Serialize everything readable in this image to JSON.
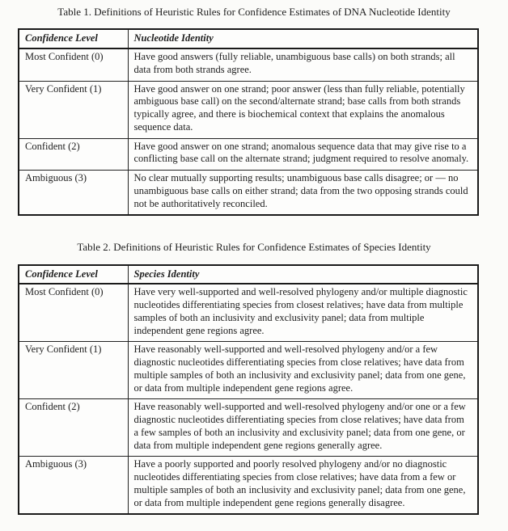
{
  "page": {
    "background_color": "#fbfbf9",
    "text_color": "#1e1e1e"
  },
  "tables": [
    {
      "title": "Table 1. Definitions of Heuristic Rules for Confidence Estimates of DNA Nucleotide Identity",
      "headers": [
        "Confidence Level",
        "Nucleotide Identity"
      ],
      "rows": [
        {
          "level": "Most Confident (0)",
          "definition": "Have good answers (fully reliable, unambiguous base calls) on both strands; all data from both strands agree."
        },
        {
          "level": "Very Confident (1)",
          "definition": "Have good answer on one strand; poor answer (less than fully reliable, potentially ambiguous base call) on the second/alternate strand; base calls from both strands typically agree, and there is biochemical context that explains the anomalous sequence data."
        },
        {
          "level": "Confident (2)",
          "definition": "Have good answer on one strand; anomalous sequence data that may give rise to a conflicting base call on the alternate strand; judgment required to resolve anomaly."
        },
        {
          "level": "Ambiguous (3)",
          "definition": "No clear mutually supporting results; unambiguous base calls disagree; or — no unambiguous base calls on either strand; data from the two opposing strands could not be authoritatively reconciled."
        }
      ]
    },
    {
      "title": "Table 2. Definitions of Heuristic Rules for Confidence Estimates of Species Identity",
      "headers": [
        "Confidence Level",
        "Species Identity"
      ],
      "rows": [
        {
          "level": "Most Confident (0)",
          "definition": "Have very well-supported and well-resolved phylogeny and/or multiple diagnostic nucleotides differentiating species from closest relatives; have data from multiple samples of both an inclusivity and exclusivity panel; data from multiple independent gene regions agree."
        },
        {
          "level": "Very Confident (1)",
          "definition": "Have reasonably well-supported and well-resolved phylogeny and/or a few diagnostic nucleotides differentiating species from close relatives; have data from multiple samples of both an inclusivity and exclusivity panel; data from one gene, or data from multiple independent gene regions agree."
        },
        {
          "level": "Confident (2)",
          "definition": "Have reasonably well-supported and well-resolved phylogeny and/or one or a few diagnostic nucleotides differentiating species from close relatives; have data from a few samples of both an inclusivity and exclusivity panel; data from one gene, or data from multiple independent gene regions generally agree."
        },
        {
          "level": "Ambiguous (3)",
          "definition": "Have a poorly supported and poorly resolved phylogeny and/or no diagnostic nucleotides differentiating species from close relatives; have data from a few or multiple samples of both an inclusivity and exclusivity panel; data from one gene, or data from multiple independent gene regions generally disagree."
        }
      ]
    }
  ]
}
